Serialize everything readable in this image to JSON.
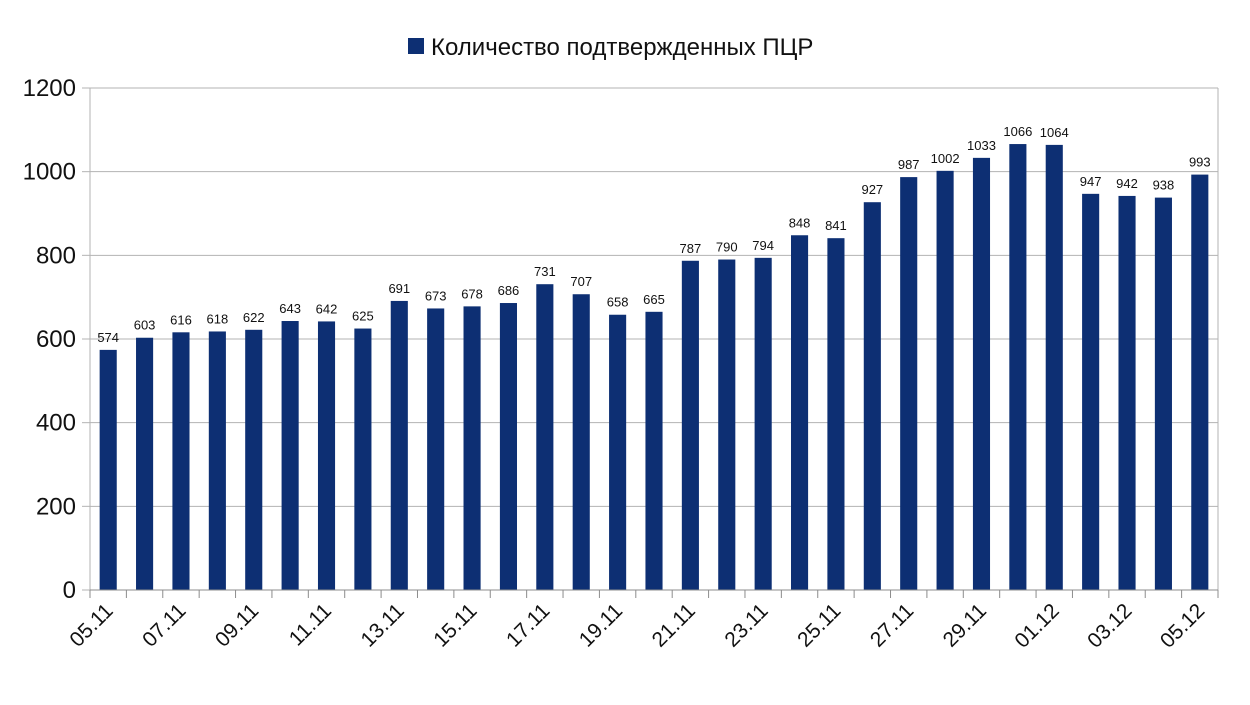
{
  "chart_data": {
    "type": "bar",
    "categories": [
      "05.11",
      "06.11",
      "07.11",
      "08.11",
      "09.11",
      "10.11",
      "11.11",
      "12.11",
      "13.11",
      "14.11",
      "15.11",
      "16.11",
      "17.11",
      "18.11",
      "19.11",
      "20.11",
      "21.11",
      "22.11",
      "23.11",
      "24.11",
      "25.11",
      "26.11",
      "27.11",
      "28.11",
      "29.11",
      "30.11",
      "01.12",
      "02.12",
      "03.12",
      "04.12",
      "05.12"
    ],
    "x_tick_labels": [
      "05.11",
      "07.11",
      "09.11",
      "11.11",
      "13.11",
      "15.11",
      "17.11",
      "19.11",
      "21.11",
      "23.11",
      "25.11",
      "27.11",
      "29.11",
      "01.12",
      "03.12",
      "05.12"
    ],
    "series": [
      {
        "name": "Количество подтвержденных ПЦР",
        "values": [
          574,
          603,
          616,
          618,
          622,
          643,
          642,
          625,
          691,
          673,
          678,
          686,
          731,
          707,
          658,
          665,
          787,
          790,
          794,
          848,
          841,
          927,
          987,
          1002,
          1033,
          1066,
          1064,
          947,
          942,
          938,
          993
        ]
      }
    ],
    "ylim": [
      0,
      1200
    ],
    "y_ticks": [
      0,
      200,
      400,
      600,
      800,
      1000,
      1200
    ],
    "grid": true,
    "legend_position": "top",
    "bar_color": "#0d2f73",
    "grid_color": "#b3b3b3"
  }
}
